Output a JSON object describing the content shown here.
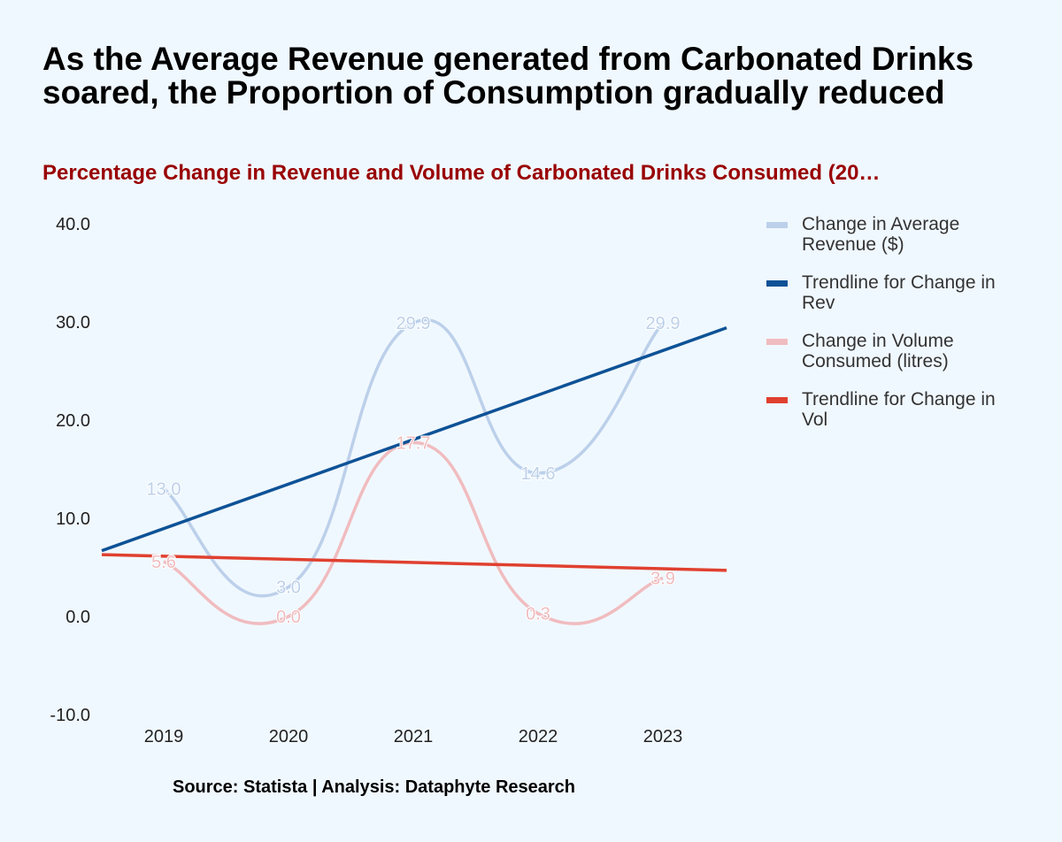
{
  "title": "As the Average Revenue generated from Carbonated Drinks soared, the Proportion of Consumption gradually reduced",
  "subtitle": "Percentage Change in Revenue and Volume of Carbonated Drinks Consumed (20…",
  "source": "Source: Statista | Analysis: Dataphyte Research",
  "chart_data": {
    "type": "line",
    "categories": [
      "2019",
      "2020",
      "2021",
      "2022",
      "2023"
    ],
    "ylim": [
      -10,
      40
    ],
    "yticks": [
      "40.0",
      "30.0",
      "20.0",
      "10.0",
      "0.0",
      "-10.0"
    ],
    "ytick_values": [
      40,
      30,
      20,
      10,
      0,
      -10
    ],
    "grid": false,
    "legend_position": "right",
    "series": [
      {
        "name": "Change in Average Revenue ($)",
        "color": "#bcd0ea",
        "values": [
          13.0,
          3.0,
          29.9,
          14.6,
          29.9
        ],
        "labels": [
          "13.0",
          "3.0",
          "29.9",
          "14.6",
          "29.9"
        ]
      },
      {
        "name": "Trendline for Change in Rev",
        "color": "#0d5296",
        "trend": {
          "start": 6.7,
          "end": 29.4
        }
      },
      {
        "name": "Change in Volume Consumed (litres)",
        "color": "#f0bcbf",
        "values": [
          5.6,
          0.0,
          17.7,
          0.3,
          3.9
        ],
        "labels": [
          "5.6",
          "0.0",
          "17.7",
          "0.3",
          "3.9"
        ]
      },
      {
        "name": "Trendline for Change in Vol",
        "color": "#e0402f",
        "trend": {
          "start": 6.3,
          "end": 4.7
        }
      }
    ]
  }
}
